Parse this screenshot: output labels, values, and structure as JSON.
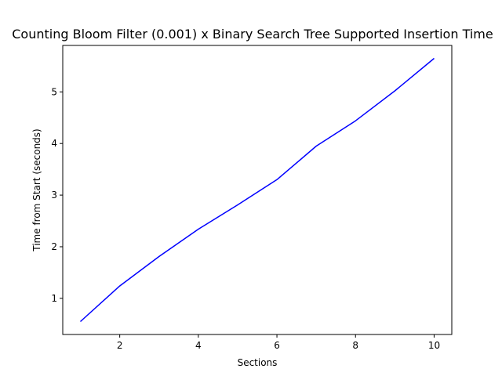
{
  "chart_data": {
    "type": "line",
    "title": "Counting Bloom Filter (0.001) x Binary Search Tree Supported Insertion Time",
    "xlabel": "Sections",
    "ylabel": "Time from Start (seconds)",
    "xlim": [
      0.55,
      10.45
    ],
    "ylim": [
      0.3,
      5.9
    ],
    "xticks": [
      2,
      4,
      6,
      8,
      10
    ],
    "yticks": [
      1,
      2,
      3,
      4,
      5
    ],
    "grid": false,
    "series": [
      {
        "color": "#0000ff",
        "x": [
          1,
          2,
          3,
          4,
          5,
          6,
          7,
          8,
          9,
          10
        ],
        "y": [
          0.55,
          1.24,
          1.81,
          2.34,
          2.81,
          3.3,
          3.95,
          4.44,
          5.02,
          5.65
        ]
      }
    ]
  }
}
